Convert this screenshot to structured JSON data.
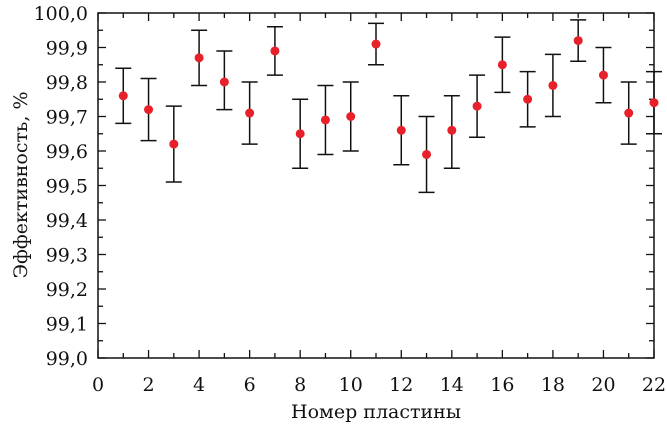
{
  "chart_data": {
    "type": "scatter",
    "xlabel": "Номер пластины",
    "ylabel": "Эффективность, %",
    "xlim": [
      0,
      22
    ],
    "ylim": [
      99.0,
      100.0
    ],
    "x_ticks": [
      0,
      2,
      4,
      6,
      8,
      10,
      12,
      14,
      16,
      18,
      20,
      22
    ],
    "x_tick_labels": [
      "0",
      "2",
      "4",
      "6",
      "8",
      "10",
      "12",
      "14",
      "16",
      "18",
      "20",
      "22"
    ],
    "y_ticks": [
      99.0,
      99.1,
      99.2,
      99.3,
      99.4,
      99.5,
      99.6,
      99.7,
      99.8,
      99.9,
      100.0
    ],
    "y_tick_labels": [
      "99,0",
      "99,1",
      "99,2",
      "99,3",
      "99,4",
      "99,5",
      "99,6",
      "99,7",
      "99,8",
      "99,9",
      "100,0"
    ],
    "grid": false,
    "marker_color": "#e8202a",
    "errorbar_color": "#111111",
    "series": [
      {
        "x": [
          1,
          2,
          3,
          4,
          5,
          6,
          7,
          8,
          9,
          10,
          11,
          12,
          13,
          14,
          15,
          16,
          17,
          18,
          19,
          20,
          21,
          22
        ],
        "y": [
          99.76,
          99.72,
          99.62,
          99.87,
          99.8,
          99.71,
          99.89,
          99.65,
          99.69,
          99.7,
          99.91,
          99.66,
          99.59,
          99.66,
          99.73,
          99.85,
          99.75,
          99.79,
          99.92,
          99.82,
          99.71,
          99.74
        ],
        "y_low": [
          99.68,
          99.63,
          99.51,
          99.79,
          99.72,
          99.62,
          99.82,
          99.55,
          99.59,
          99.6,
          99.85,
          99.56,
          99.48,
          99.55,
          99.64,
          99.77,
          99.67,
          99.7,
          99.86,
          99.74,
          99.62,
          99.65
        ],
        "y_high": [
          99.84,
          99.81,
          99.73,
          99.95,
          99.89,
          99.8,
          99.96,
          99.75,
          99.79,
          99.8,
          99.97,
          99.76,
          99.7,
          99.76,
          99.82,
          99.93,
          99.83,
          99.88,
          99.98,
          99.9,
          99.8,
          99.83
        ]
      }
    ]
  }
}
